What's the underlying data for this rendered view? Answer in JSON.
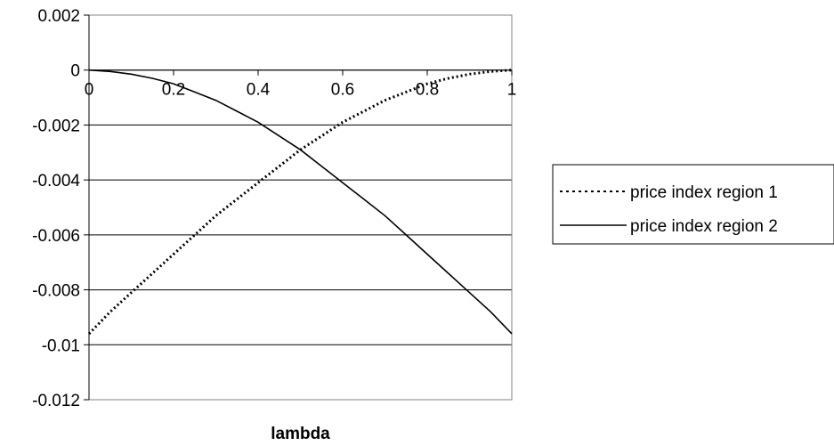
{
  "chart_data": {
    "type": "line",
    "title": "",
    "xlabel": "lambda",
    "ylabel": "",
    "xlim": [
      0,
      1
    ],
    "ylim": [
      -0.012,
      0.002
    ],
    "x_ticks": [
      0,
      0.2,
      0.4,
      0.6,
      0.8,
      1
    ],
    "x_tick_labels": [
      "0",
      "0.2",
      "0.4",
      "0.6",
      "0.8",
      "1"
    ],
    "y_ticks": [
      0.002,
      0,
      -0.002,
      -0.004,
      -0.006,
      -0.008,
      -0.01,
      -0.012
    ],
    "y_tick_labels": [
      "0.002",
      "0",
      "-0.002",
      "-0.004",
      "-0.006",
      "-0.008",
      "-0.01",
      "-0.012"
    ],
    "grid": "horizontal",
    "legend_position": "right",
    "x": [
      0,
      0.05,
      0.1,
      0.15,
      0.2,
      0.25,
      0.3,
      0.35,
      0.4,
      0.45,
      0.5,
      0.55,
      0.6,
      0.65,
      0.7,
      0.75,
      0.8,
      0.85,
      0.9,
      0.95,
      1
    ],
    "series": [
      {
        "name": "price index region 1",
        "style": "dotted",
        "values": [
          -0.0096,
          -0.0088,
          -0.0081,
          -0.0074,
          -0.0067,
          -0.006,
          -0.0053,
          -0.0047,
          -0.0041,
          -0.0035,
          -0.0029,
          -0.0024,
          -0.0019,
          -0.0015,
          -0.0011,
          -0.0008,
          -0.0005,
          -0.0003,
          -0.00015,
          -5e-05,
          0
        ]
      },
      {
        "name": "price index region 2",
        "style": "solid",
        "values": [
          0,
          -5e-05,
          -0.00015,
          -0.0003,
          -0.0005,
          -0.0008,
          -0.0011,
          -0.0015,
          -0.0019,
          -0.0024,
          -0.0029,
          -0.0035,
          -0.0041,
          -0.0047,
          -0.0053,
          -0.006,
          -0.0067,
          -0.0074,
          -0.0081,
          -0.0088,
          -0.0096
        ]
      }
    ]
  }
}
